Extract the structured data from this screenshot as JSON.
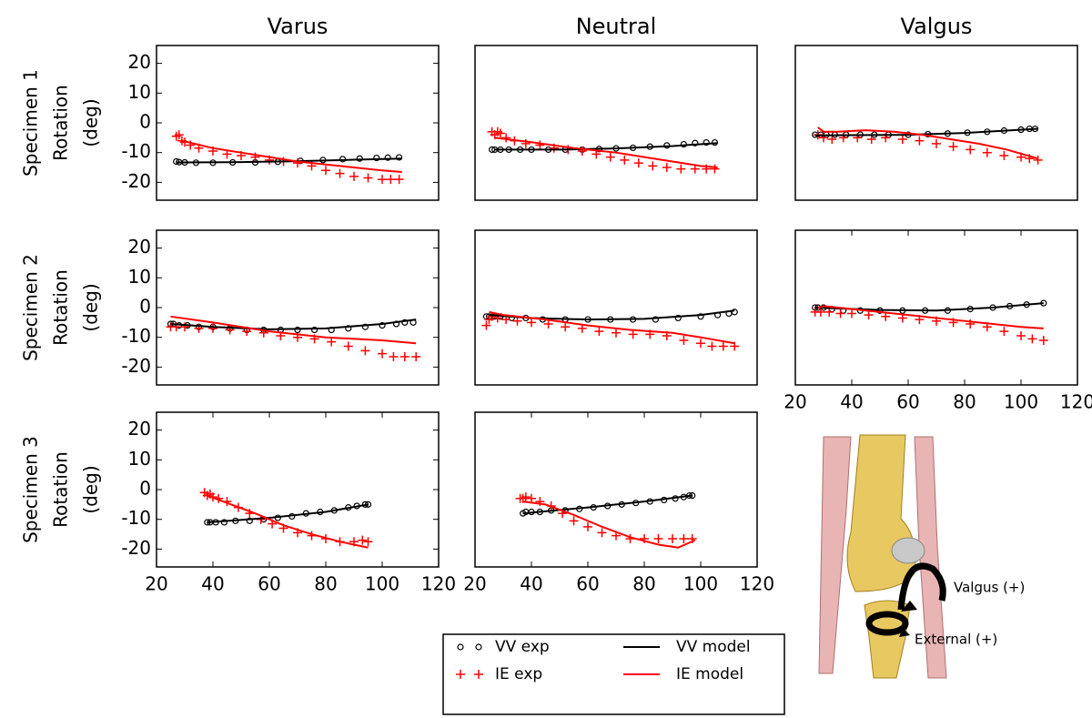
{
  "legend": [
    {
      "name": "VV exp",
      "color": "#000000",
      "style": "circle"
    },
    {
      "name": "IE exp",
      "color": "#ff0000",
      "style": "plus"
    },
    {
      "name": "VV model",
      "color": "#000000",
      "style": "line"
    },
    {
      "name": "IE model",
      "color": "#ff0000",
      "style": "line"
    }
  ],
  "figure": {
    "labels": [
      "Valgus (+)",
      "External (+)"
    ]
  },
  "chart_data": [
    {
      "type": "line",
      "title": "Varus",
      "ylabel": [
        "Specimen 1",
        "Rotation",
        "(deg)"
      ],
      "xlim": [
        20,
        120
      ],
      "ylim": [
        -26,
        26
      ],
      "yticks": [
        -20,
        -10,
        0,
        10,
        20
      ],
      "series": [
        {
          "x": [
            27,
            28,
            30,
            34,
            40,
            47,
            55,
            63,
            71,
            79,
            86,
            92,
            98,
            102,
            106
          ],
          "values": [
            -13,
            -13.2,
            -13.3,
            -13.4,
            -13.4,
            -13.3,
            -13.3,
            -13.1,
            -12.8,
            -12.5,
            -12.2,
            -12,
            -11.8,
            -11.7,
            -11.6
          ]
        },
        {
          "x": [
            27,
            28,
            29,
            30,
            32,
            35,
            40,
            45,
            50,
            55,
            60,
            65,
            70,
            75,
            80,
            85,
            90,
            95,
            100,
            103,
            106
          ],
          "values": [
            -4.5,
            -4,
            -6,
            -6.5,
            -7.5,
            -8.5,
            -9.5,
            -10.5,
            -11,
            -11.5,
            -12.5,
            -13,
            -13.5,
            -14.5,
            -16,
            -17,
            -18,
            -18.5,
            -19,
            -19,
            -19
          ]
        },
        {
          "x": [
            27,
            50,
            70,
            90,
            107
          ],
          "values": [
            -13.3,
            -13.2,
            -12.9,
            -12.4,
            -12
          ]
        },
        {
          "x": [
            29,
            40,
            50,
            60,
            70,
            80,
            90,
            100,
            107
          ],
          "values": [
            -6,
            -8.5,
            -10,
            -11.5,
            -13,
            -14,
            -15,
            -16,
            -16.5
          ]
        }
      ]
    },
    {
      "type": "line",
      "title": "Neutral",
      "xlim": [
        20,
        120
      ],
      "ylim": [
        -26,
        26
      ],
      "series": [
        {
          "x": [
            26,
            27,
            29,
            32,
            36,
            40,
            46,
            52,
            58,
            64,
            70,
            76,
            82,
            88,
            94,
            98,
            102,
            105
          ],
          "values": [
            -9,
            -9,
            -9,
            -9,
            -9,
            -9,
            -9,
            -9,
            -9,
            -8.8,
            -8.6,
            -8.4,
            -8,
            -7.6,
            -7.2,
            -6.8,
            -6.6,
            -6.6
          ]
        },
        {
          "x": [
            26,
            27,
            28,
            29,
            31,
            34,
            38,
            43,
            48,
            53,
            58,
            63,
            68,
            73,
            78,
            83,
            88,
            93,
            98,
            102,
            105
          ],
          "values": [
            -3,
            -4,
            -3,
            -3.5,
            -5,
            -6,
            -7,
            -7.5,
            -8.5,
            -9,
            -9.5,
            -10.5,
            -11.5,
            -12.5,
            -13.5,
            -14.5,
            -15,
            -15.5,
            -15.5,
            -15.5,
            -15.5
          ]
        },
        {
          "x": [
            27,
            50,
            70,
            90,
            106
          ],
          "values": [
            -9,
            -9,
            -8.6,
            -7.8,
            -6.8
          ]
        },
        {
          "x": [
            27,
            40,
            55,
            70,
            80,
            90,
            100,
            106
          ],
          "values": [
            -5,
            -6.5,
            -8.5,
            -10,
            -11.5,
            -13,
            -14.5,
            -15
          ]
        }
      ]
    },
    {
      "type": "line",
      "title": "Valgus",
      "xlim": [
        20,
        120
      ],
      "ylim": [
        -26,
        26
      ],
      "series": [
        {
          "x": [
            27,
            29,
            31,
            34,
            38,
            43,
            48,
            53,
            60,
            67,
            74,
            81,
            88,
            94,
            100,
            103,
            105
          ],
          "values": [
            -4,
            -4,
            -4,
            -4,
            -4,
            -4,
            -4,
            -4,
            -4,
            -3.8,
            -3.6,
            -3.3,
            -3,
            -2.6,
            -2.3,
            -2,
            -2
          ]
        },
        {
          "x": [
            28,
            30,
            33,
            37,
            42,
            47,
            52,
            58,
            64,
            70,
            76,
            82,
            88,
            94,
            100,
            103,
            106
          ],
          "values": [
            -4,
            -5,
            -5.5,
            -5,
            -5,
            -5.5,
            -5,
            -5.5,
            -6,
            -7,
            -8,
            -9,
            -10,
            -11,
            -11.5,
            -12,
            -12.5
          ]
        },
        {
          "x": [
            27,
            60,
            80,
            106
          ],
          "values": [
            -4.2,
            -4,
            -3.4,
            -2
          ]
        },
        {
          "x": [
            28,
            30,
            35,
            45,
            55,
            65,
            75,
            85,
            95,
            106
          ],
          "values": [
            -1.5,
            -3,
            -3,
            -2.5,
            -3,
            -4,
            -5.5,
            -7,
            -9,
            -12
          ]
        }
      ]
    },
    {
      "type": "line",
      "ylabel": [
        "Specimen 2",
        "Rotation",
        "(deg)"
      ],
      "xlim": [
        20,
        120
      ],
      "ylim": [
        -26,
        26
      ],
      "yticks": [
        -20,
        -10,
        0,
        10,
        20
      ],
      "series": [
        {
          "x": [
            25,
            26,
            28,
            31,
            35,
            40,
            46,
            52,
            58,
            64,
            70,
            76,
            82,
            88,
            94,
            100,
            105,
            108,
            111
          ],
          "values": [
            -5.5,
            -5.5,
            -6,
            -6,
            -6.5,
            -6.5,
            -7,
            -7.5,
            -7.5,
            -7.5,
            -7.5,
            -7.5,
            -7.5,
            -7,
            -6.5,
            -6,
            -5.5,
            -5,
            -5
          ]
        },
        {
          "x": [
            25,
            27,
            30,
            35,
            40,
            46,
            52,
            58,
            64,
            70,
            76,
            82,
            88,
            94,
            100,
            104,
            108,
            112
          ],
          "values": [
            -6.5,
            -6.5,
            -6.5,
            -7,
            -7,
            -7.5,
            -8,
            -8.5,
            -9.5,
            -10,
            -10.5,
            -11.5,
            -13,
            -14.5,
            -15.5,
            -16.5,
            -16.5,
            -16.5
          ]
        },
        {
          "x": [
            25,
            40,
            60,
            80,
            100,
            112
          ],
          "values": [
            -5.5,
            -6.5,
            -7.3,
            -7,
            -5.5,
            -4
          ]
        },
        {
          "x": [
            25,
            40,
            60,
            80,
            100,
            112
          ],
          "values": [
            -3,
            -5,
            -8,
            -10,
            -11,
            -12
          ]
        }
      ]
    },
    {
      "type": "line",
      "xlim": [
        20,
        120
      ],
      "ylim": [
        -26,
        26
      ],
      "series": [
        {
          "x": [
            24,
            25,
            27,
            29,
            33,
            38,
            44,
            52,
            60,
            68,
            76,
            84,
            92,
            100,
            106,
            110,
            112
          ],
          "values": [
            -3,
            -3,
            -3,
            -3,
            -3.5,
            -3.5,
            -4,
            -4,
            -4,
            -4,
            -4,
            -4,
            -3.5,
            -3,
            -2.5,
            -2,
            -1.5
          ]
        },
        {
          "x": [
            24,
            25,
            26,
            28,
            31,
            35,
            40,
            46,
            52,
            58,
            64,
            70,
            76,
            82,
            88,
            94,
            100,
            104,
            108,
            112
          ],
          "values": [
            -6,
            -4,
            -3,
            -3.5,
            -4,
            -4.5,
            -5,
            -5.5,
            -6.5,
            -7,
            -8,
            -8.5,
            -9,
            -9,
            -9.5,
            -11,
            -12,
            -13,
            -13,
            -13
          ]
        },
        {
          "x": [
            25,
            40,
            60,
            80,
            100,
            112
          ],
          "values": [
            -2.5,
            -3.5,
            -4,
            -3.8,
            -2.5,
            -1
          ]
        },
        {
          "x": [
            25,
            30,
            45,
            60,
            75,
            90,
            100,
            112
          ],
          "values": [
            -1.5,
            -2.5,
            -4,
            -6,
            -7.5,
            -8.5,
            -10,
            -12
          ]
        }
      ]
    },
    {
      "type": "line",
      "xlim": [
        20,
        120
      ],
      "ylim": [
        -26,
        26
      ],
      "xticks": [
        20,
        40,
        60,
        80,
        100,
        120
      ],
      "series": [
        {
          "x": [
            27,
            28,
            30,
            33,
            37,
            43,
            50,
            58,
            66,
            74,
            82,
            90,
            96,
            102,
            108
          ],
          "values": [
            0,
            0,
            0,
            -0.5,
            -1,
            -1,
            -1,
            -1,
            -1,
            -1,
            -0.5,
            0,
            0.5,
            1,
            1.5
          ]
        },
        {
          "x": [
            27,
            29,
            32,
            36,
            40,
            46,
            52,
            58,
            64,
            70,
            76,
            82,
            88,
            94,
            100,
            104,
            108
          ],
          "values": [
            -1.5,
            -1.5,
            -1.5,
            -2,
            -2,
            -2.5,
            -3,
            -3.5,
            -4,
            -4.5,
            -5,
            -5.5,
            -6.5,
            -8,
            -9.5,
            -10.5,
            -11
          ]
        },
        {
          "x": [
            27,
            50,
            70,
            90,
            108
          ],
          "values": [
            0,
            -0.8,
            -1,
            0,
            1.5
          ]
        },
        {
          "x": [
            28,
            30,
            40,
            55,
            70,
            85,
            100,
            108
          ],
          "values": [
            0,
            0.5,
            -0.5,
            -2,
            -3.5,
            -5,
            -6.5,
            -7
          ]
        }
      ]
    },
    {
      "type": "line",
      "ylabel": [
        "Specimen 3",
        "Rotation",
        "(deg)"
      ],
      "xlim": [
        20,
        120
      ],
      "ylim": [
        -26,
        26
      ],
      "yticks": [
        -20,
        -10,
        0,
        10,
        20
      ],
      "xticks": [
        20,
        40,
        60,
        80,
        100,
        120
      ],
      "series": [
        {
          "x": [
            38,
            39,
            41,
            44,
            48,
            53,
            58,
            63,
            68,
            73,
            78,
            83,
            88,
            91,
            94,
            95
          ],
          "values": [
            -11,
            -11,
            -11,
            -11,
            -10.5,
            -10.5,
            -10,
            -9.5,
            -9,
            -8,
            -7.5,
            -7,
            -6,
            -5.5,
            -5,
            -5
          ]
        },
        {
          "x": [
            37,
            38,
            39,
            40,
            42,
            45,
            49,
            53,
            57,
            61,
            65,
            70,
            75,
            80,
            85,
            90,
            93,
            95
          ],
          "values": [
            -1,
            -2,
            -1.5,
            -2.5,
            -3,
            -4,
            -6,
            -8,
            -10,
            -11.5,
            -13,
            -14.5,
            -15.5,
            -16.5,
            -17.5,
            -17.5,
            -17,
            -17.5
          ]
        },
        {
          "x": [
            38,
            60,
            80,
            95
          ],
          "values": [
            -11,
            -9.5,
            -7.5,
            -5
          ]
        },
        {
          "x": [
            38,
            45,
            55,
            65,
            75,
            85,
            95
          ],
          "values": [
            -2,
            -4.5,
            -8,
            -12,
            -15,
            -17.5,
            -19.5
          ]
        }
      ]
    },
    {
      "type": "line",
      "xlim": [
        20,
        120
      ],
      "ylim": [
        -26,
        26
      ],
      "xticks": [
        20,
        40,
        60,
        80,
        100,
        120
      ],
      "series": [
        {
          "x": [
            37,
            38,
            40,
            43,
            47,
            52,
            57,
            62,
            67,
            72,
            77,
            82,
            87,
            91,
            94,
            96,
            97
          ],
          "values": [
            -8,
            -7.5,
            -7.5,
            -7.5,
            -7,
            -7,
            -6.5,
            -6,
            -5.5,
            -5,
            -4.5,
            -4,
            -3.5,
            -3,
            -2.5,
            -2,
            -2
          ]
        },
        {
          "x": [
            36,
            37,
            38,
            40,
            43,
            47,
            51,
            55,
            60,
            65,
            70,
            75,
            80,
            85,
            90,
            94,
            97
          ],
          "values": [
            -3,
            -3,
            -2.5,
            -3,
            -4,
            -5.5,
            -8,
            -10.5,
            -12.5,
            -14.5,
            -15.5,
            -16.5,
            -16.5,
            -16.5,
            -16.5,
            -16.5,
            -16.5
          ]
        },
        {
          "x": [
            37,
            60,
            80,
            97
          ],
          "values": [
            -8,
            -6,
            -4,
            -2
          ]
        },
        {
          "x": [
            37,
            45,
            55,
            65,
            75,
            85,
            92,
            98
          ],
          "values": [
            -4,
            -5,
            -8.5,
            -12.5,
            -16,
            -18.5,
            -19.5,
            -17
          ]
        }
      ]
    }
  ]
}
